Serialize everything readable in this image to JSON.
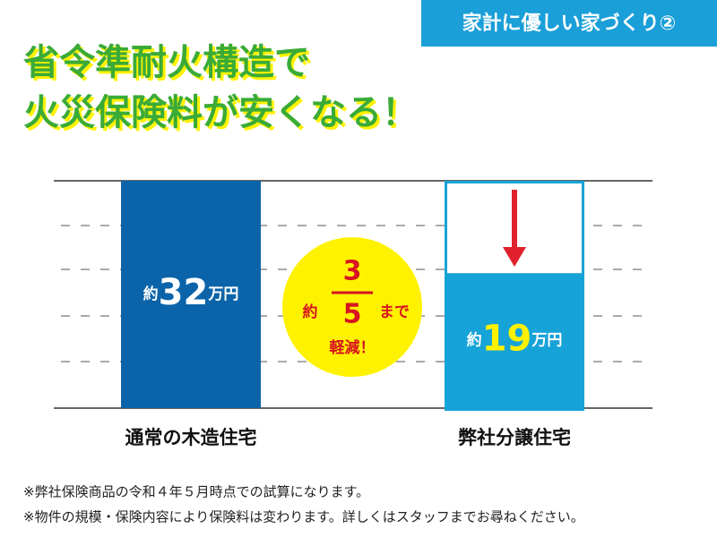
{
  "chart_data": {
    "type": "bar",
    "badge": "家計に優しい家づくり②",
    "title": [
      "省令準耐火構造で",
      "火災保険料が安くなる！"
    ],
    "categories": [
      "通常の木造住宅",
      "弊社分譲住宅"
    ],
    "values": [
      32,
      19
    ],
    "colors": [
      "#0b64a9",
      "#16a3d8"
    ],
    "value_label_colors": [
      "#ffffff",
      "#fff200"
    ],
    "value_prefix": "約",
    "value_unit": "万円",
    "ylim": [
      0,
      32
    ],
    "annotation": {
      "prefix": "約",
      "numerator": 3,
      "denominator": 5,
      "suffix": "まで",
      "text": "軽減！"
    },
    "footnotes": [
      "※弊社保険商品の令和４年５月時点での試算になります。",
      "※物件の規模・保険内容により保険料は変わります。詳しくはスタッフまでお尋ねください。"
    ]
  }
}
